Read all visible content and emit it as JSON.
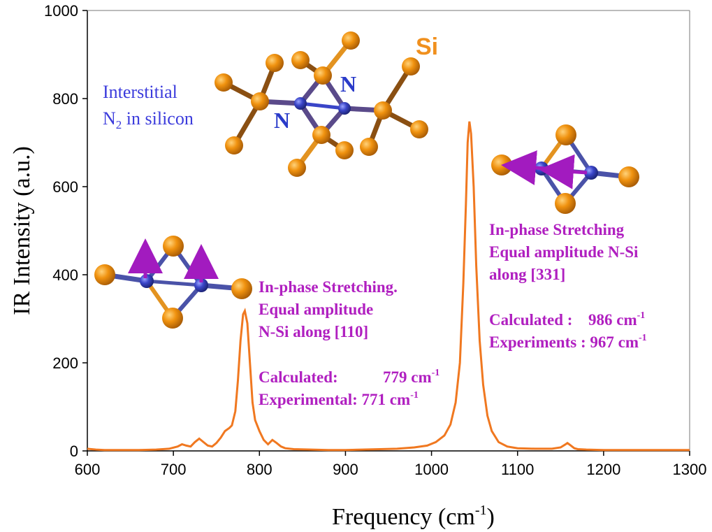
{
  "chart_data": {
    "type": "line",
    "xlabel": "Frequency (cm",
    "xlabel_sup": "-1",
    "xlabel_end": ")",
    "ylabel": "IR Intensity (a.u.)",
    "xlim": [
      600,
      1300
    ],
    "ylim": [
      0,
      1000
    ],
    "x_ticks": [
      "600",
      "700",
      "800",
      "900",
      "1000",
      "1100",
      "1200",
      "1300"
    ],
    "y_ticks": [
      "0",
      "200",
      "400",
      "600",
      "800",
      "1000"
    ],
    "grid": false,
    "series": [
      {
        "color": "#f07820",
        "x": [
          600,
          610,
          620,
          640,
          660,
          680,
          695,
          705,
          710,
          715,
          720,
          725,
          730,
          735,
          740,
          745,
          750,
          755,
          760,
          765,
          768,
          772,
          775,
          778,
          781,
          783,
          786,
          789,
          792,
          795,
          800,
          805,
          810,
          815,
          820,
          825,
          830,
          840,
          860,
          880,
          900,
          920,
          940,
          960,
          980,
          995,
          1005,
          1015,
          1022,
          1028,
          1033,
          1037,
          1040,
          1042,
          1044,
          1046,
          1049,
          1052,
          1056,
          1060,
          1065,
          1070,
          1078,
          1088,
          1100,
          1120,
          1140,
          1150,
          1155,
          1158,
          1162,
          1166,
          1170,
          1180,
          1200,
          1240,
          1300
        ],
        "y": [
          5,
          3,
          2,
          2,
          2,
          3,
          5,
          10,
          15,
          12,
          10,
          20,
          28,
          20,
          12,
          10,
          18,
          30,
          45,
          52,
          58,
          90,
          160,
          250,
          310,
          318,
          290,
          200,
          110,
          70,
          45,
          25,
          15,
          25,
          18,
          10,
          6,
          4,
          3,
          2,
          2,
          3,
          4,
          5,
          8,
          12,
          20,
          35,
          60,
          110,
          200,
          380,
          560,
          700,
          748,
          720,
          600,
          420,
          250,
          150,
          80,
          45,
          20,
          10,
          6,
          5,
          5,
          8,
          14,
          18,
          12,
          6,
          4,
          3,
          2,
          2,
          2
        ]
      }
    ]
  },
  "annotations": {
    "interstitial_line1": "Interstitial",
    "interstitial_line2": "N",
    "interstitial_sub": "2",
    "interstitial_line2_end": "  in silicon",
    "si_label": "Si",
    "n_label_1": "N",
    "n_label_2": "N",
    "left_mode_1": "In-phase Stretching.",
    "left_mode_2": "Equal amplitude",
    "left_mode_3": "N-Si along [110]",
    "left_calc_label": "Calculated:",
    "left_calc_value": "779 cm",
    "left_exp_label": "Experimental: 771 cm",
    "left_sup": "-1",
    "right_mode_1": "In-phase Stretching",
    "right_mode_2": "Equal amplitude N-Si",
    "right_mode_3": "along [331]",
    "right_calc_label": "Calculated :",
    "right_calc_value": "986 cm",
    "right_exp_label": "Experiments : 967 cm",
    "right_sup": "-1"
  },
  "colors": {
    "si_atom": "#e8870f",
    "n_atom": "#3a45c8",
    "arrow": "#a21bbf",
    "line": "#f07820"
  }
}
